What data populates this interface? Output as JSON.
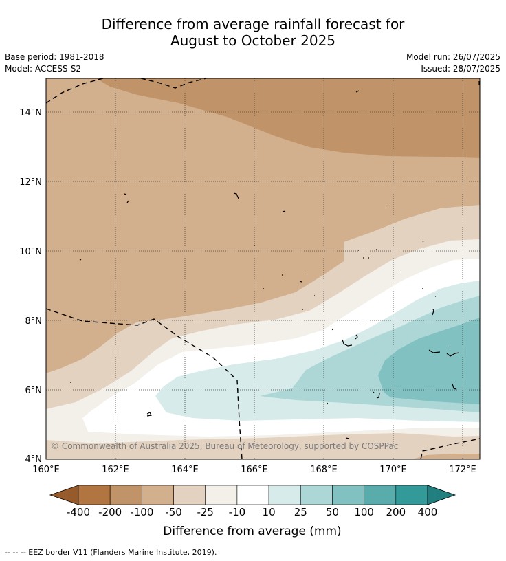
{
  "header": {
    "title_line1": "Difference from average rainfall forecast for",
    "title_line2": "August to October 2025",
    "base_period": "Base period: 1981-2018",
    "model": "Model: ACCESS-S2",
    "model_run": "Model run: 26/07/2025",
    "issued": "Issued: 28/07/2025"
  },
  "map": {
    "lat_ticks": [
      "4°N",
      "6°N",
      "8°N",
      "10°N",
      "12°N",
      "14°N"
    ],
    "lon_ticks": [
      "160°E",
      "162°E",
      "164°E",
      "166°E",
      "168°E",
      "170°E",
      "172°E"
    ],
    "copyright": "© Commonwealth of Australia 2025, Bureau of Meteorology, supported by COSPPac"
  },
  "colorbar": {
    "title": "Difference from average (mm)",
    "ticks": [
      "-400",
      "-200",
      "-100",
      "-50",
      "-25",
      "-10",
      "10",
      "25",
      "50",
      "100",
      "200",
      "400"
    ],
    "colors": [
      "#975a2b",
      "#b07540",
      "#c09468",
      "#d2b08e",
      "#e4d2c1",
      "#f3efe9",
      "#ffffff",
      "#d6ebea",
      "#add6d6",
      "#82c1c1",
      "#5aabab",
      "#339999",
      "#217f7f"
    ]
  },
  "footnote": "--  --  -- EEZ border V11 (Flanders Marine Institute, 2019)."
}
